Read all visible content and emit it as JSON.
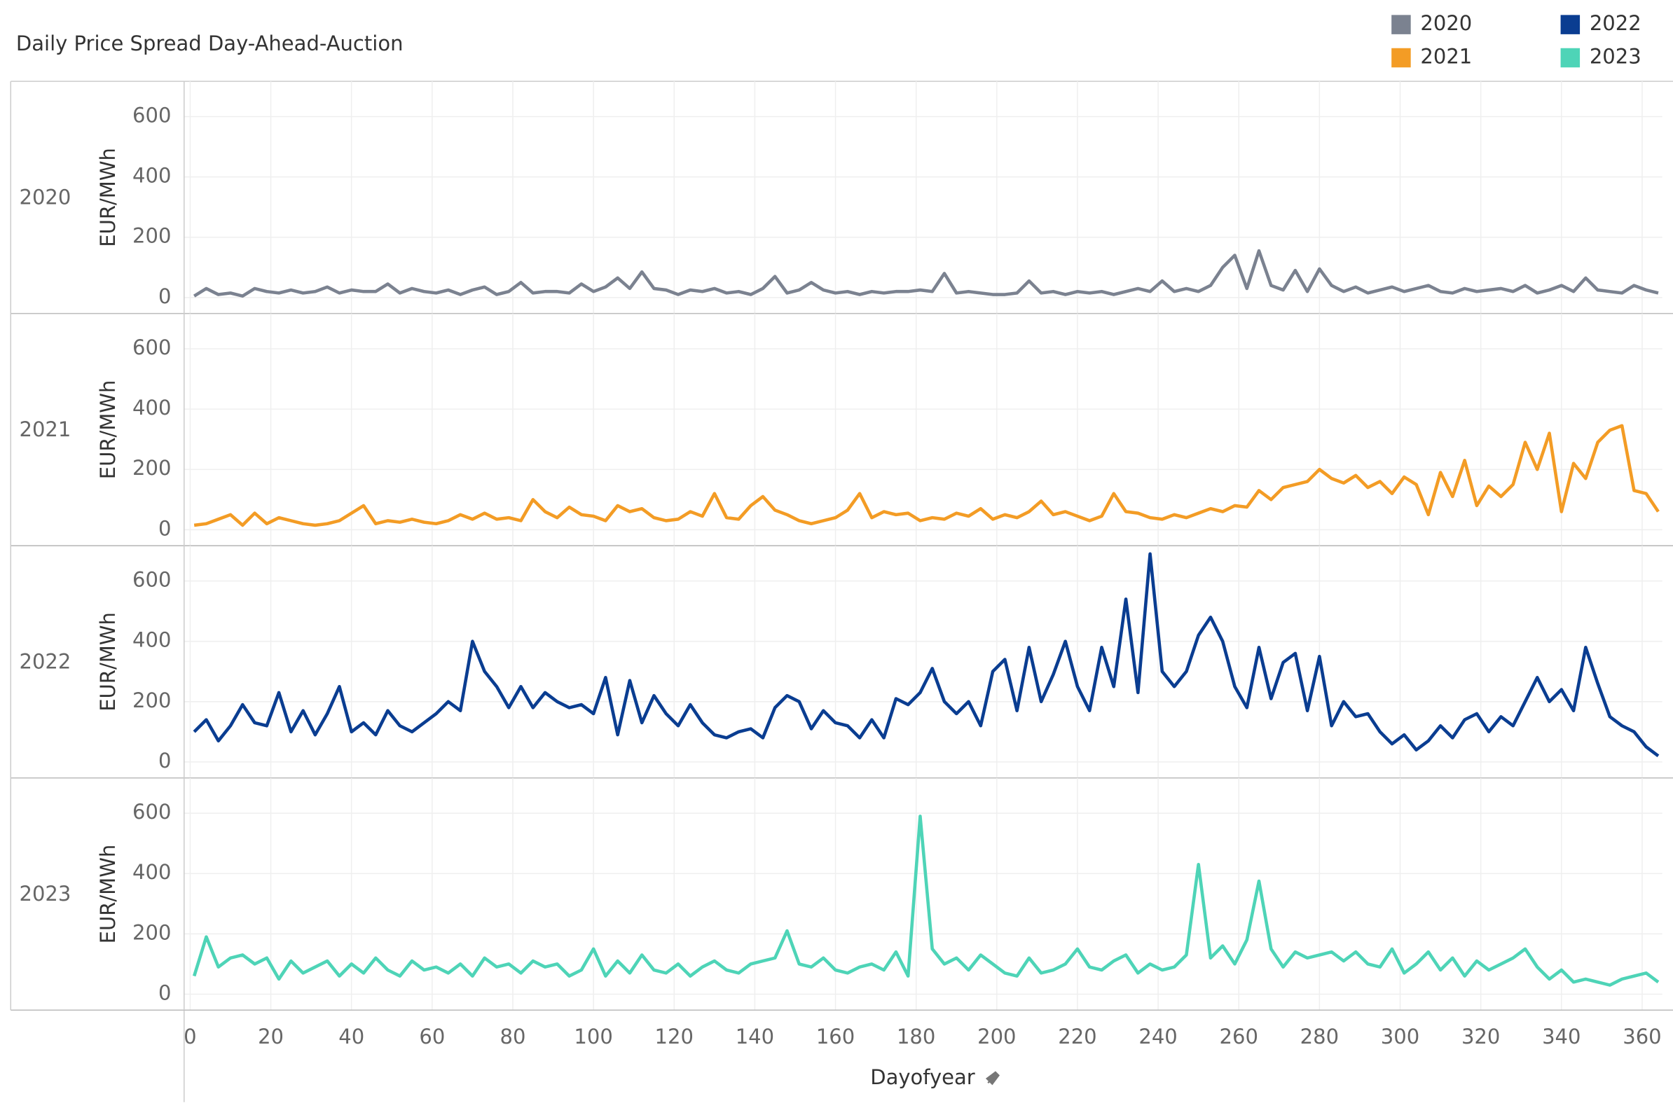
{
  "chart_data": {
    "type": "line",
    "title": "Daily Price Spread Day-Ahead-Auction",
    "x_label": "Dayofyear",
    "y_label": "EUR/MWh",
    "xlim": [
      -1.5,
      365
    ],
    "xticks": [
      0,
      20,
      40,
      60,
      80,
      100,
      120,
      140,
      160,
      180,
      200,
      220,
      240,
      260,
      280,
      300,
      320,
      340,
      360
    ],
    "ylim": [
      -53,
      717
    ],
    "yticks": [
      0,
      200,
      400,
      600
    ],
    "grid": true,
    "x": [
      1,
      4,
      7,
      10,
      13,
      16,
      19,
      22,
      25,
      28,
      31,
      34,
      37,
      40,
      43,
      46,
      49,
      52,
      55,
      58,
      61,
      64,
      67,
      70,
      73,
      76,
      79,
      82,
      85,
      88,
      91,
      94,
      97,
      100,
      103,
      106,
      109,
      112,
      115,
      118,
      121,
      124,
      127,
      130,
      133,
      136,
      139,
      142,
      145,
      148,
      151,
      154,
      157,
      160,
      163,
      166,
      169,
      172,
      175,
      178,
      181,
      184,
      187,
      190,
      193,
      196,
      199,
      202,
      205,
      208,
      211,
      214,
      217,
      220,
      223,
      226,
      229,
      232,
      235,
      238,
      241,
      244,
      247,
      250,
      253,
      256,
      259,
      262,
      265,
      268,
      271,
      274,
      277,
      280,
      283,
      286,
      289,
      292,
      295,
      298,
      301,
      304,
      307,
      310,
      313,
      316,
      319,
      322,
      325,
      328,
      331,
      334,
      337,
      340,
      343,
      346,
      349,
      352,
      355,
      358,
      361,
      364
    ],
    "series": [
      {
        "name": "2020",
        "color": "#7b8290",
        "values": [
          5,
          30,
          10,
          15,
          5,
          30,
          20,
          15,
          25,
          15,
          20,
          35,
          15,
          25,
          20,
          20,
          45,
          15,
          30,
          20,
          15,
          25,
          10,
          25,
          35,
          10,
          20,
          50,
          15,
          20,
          20,
          15,
          45,
          20,
          35,
          65,
          30,
          85,
          30,
          25,
          10,
          25,
          20,
          30,
          15,
          20,
          10,
          30,
          70,
          15,
          25,
          50,
          25,
          15,
          20,
          10,
          20,
          15,
          20,
          20,
          25,
          20,
          80,
          15,
          20,
          15,
          10,
          10,
          15,
          55,
          15,
          20,
          10,
          20,
          15,
          20,
          10,
          20,
          30,
          20,
          55,
          20,
          30,
          20,
          40,
          100,
          140,
          30,
          155,
          40,
          25,
          90,
          20,
          95,
          40,
          20,
          35,
          15,
          25,
          35,
          20,
          30,
          40,
          20,
          15,
          30,
          20,
          25,
          30,
          20,
          40,
          15,
          25,
          40,
          20,
          65,
          25,
          20,
          15,
          40,
          25,
          15
        ]
      },
      {
        "name": "2021",
        "color": "#f39c25",
        "values": [
          15,
          20,
          35,
          50,
          15,
          55,
          20,
          40,
          30,
          20,
          15,
          20,
          30,
          55,
          80,
          20,
          30,
          25,
          35,
          25,
          20,
          30,
          50,
          35,
          55,
          35,
          40,
          30,
          100,
          60,
          40,
          75,
          50,
          45,
          30,
          80,
          60,
          70,
          40,
          30,
          35,
          60,
          45,
          120,
          40,
          35,
          80,
          110,
          65,
          50,
          30,
          20,
          30,
          40,
          65,
          120,
          40,
          60,
          50,
          55,
          30,
          40,
          35,
          55,
          45,
          70,
          35,
          50,
          40,
          60,
          95,
          50,
          60,
          45,
          30,
          45,
          120,
          60,
          55,
          40,
          35,
          50,
          40,
          55,
          70,
          60,
          80,
          75,
          130,
          100,
          140,
          150,
          160,
          200,
          170,
          155,
          180,
          140,
          160,
          120,
          175,
          150,
          50,
          190,
          110,
          230,
          80,
          145,
          110,
          150,
          290,
          200,
          320,
          60,
          220,
          170,
          290,
          330,
          345,
          130,
          120,
          60
        ]
      },
      {
        "name": "2022",
        "color": "#0a3d91",
        "values": [
          100,
          140,
          70,
          120,
          190,
          130,
          120,
          230,
          100,
          170,
          90,
          160,
          250,
          100,
          130,
          90,
          170,
          120,
          100,
          130,
          160,
          200,
          170,
          400,
          300,
          250,
          180,
          250,
          180,
          230,
          200,
          180,
          190,
          160,
          280,
          90,
          270,
          130,
          220,
          160,
          120,
          190,
          130,
          90,
          80,
          100,
          110,
          80,
          180,
          220,
          200,
          110,
          170,
          130,
          120,
          80,
          140,
          80,
          210,
          190,
          230,
          310,
          200,
          160,
          200,
          120,
          300,
          340,
          170,
          380,
          200,
          290,
          400,
          250,
          170,
          380,
          250,
          540,
          230,
          690,
          300,
          250,
          300,
          420,
          480,
          400,
          250,
          180,
          380,
          210,
          330,
          360,
          170,
          350,
          120,
          200,
          150,
          160,
          100,
          60,
          90,
          40,
          70,
          120,
          80,
          140,
          160,
          100,
          150,
          120,
          200,
          280,
          200,
          240,
          170,
          380,
          260,
          150,
          120,
          100,
          50,
          20
        ]
      },
      {
        "name": "2023",
        "color": "#4ed4b7",
        "values": [
          60,
          190,
          90,
          120,
          130,
          100,
          120,
          50,
          110,
          70,
          90,
          110,
          60,
          100,
          70,
          120,
          80,
          60,
          110,
          80,
          90,
          70,
          100,
          60,
          120,
          90,
          100,
          70,
          110,
          90,
          100,
          60,
          80,
          150,
          60,
          110,
          70,
          130,
          80,
          70,
          100,
          60,
          90,
          110,
          80,
          70,
          100,
          110,
          120,
          210,
          100,
          90,
          120,
          80,
          70,
          90,
          100,
          80,
          140,
          60,
          590,
          150,
          100,
          120,
          80,
          130,
          100,
          70,
          60,
          120,
          70,
          80,
          100,
          150,
          90,
          80,
          110,
          130,
          70,
          100,
          80,
          90,
          130,
          430,
          120,
          160,
          100,
          180,
          375,
          150,
          90,
          140,
          120,
          130,
          140,
          110,
          140,
          100,
          90,
          150,
          70,
          100,
          140,
          80,
          120,
          60,
          110,
          80,
          100,
          120,
          150,
          90,
          50,
          80,
          40,
          50,
          40,
          30,
          50,
          60,
          70,
          40
        ]
      }
    ]
  }
}
